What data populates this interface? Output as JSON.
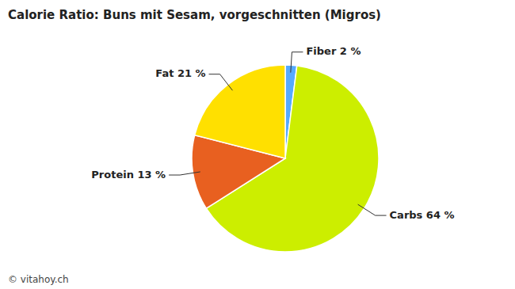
{
  "chart_data": {
    "type": "pie",
    "title": "Calorie Ratio: Buns mit Sesam, vorgeschnitten (Migros)",
    "categories": [
      "Fiber 2 %",
      "Carbs 64 %",
      "Protein 13 %",
      "Fat 21 %"
    ],
    "values": [
      2,
      64,
      13,
      21
    ],
    "colors": [
      "#55AAFF",
      "#CCEE00",
      "#E86020",
      "#FFE000"
    ],
    "annotations": [
      "© vitahoy.ch"
    ]
  }
}
